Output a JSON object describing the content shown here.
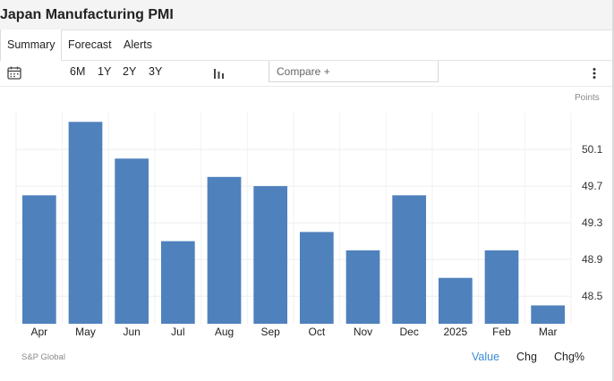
{
  "header": {
    "title": "Japan Manufacturing PMI"
  },
  "tabs": [
    {
      "label": "Summary",
      "active": true
    },
    {
      "label": "Forecast",
      "active": false
    },
    {
      "label": "Alerts",
      "active": false
    }
  ],
  "toolbar": {
    "calendar_icon": "calendar-icon",
    "ranges": [
      "6M",
      "1Y",
      "2Y",
      "3Y"
    ],
    "chart_type_icon": "bar-chart-icon",
    "compare_placeholder": "Compare +",
    "more_icon": "more-vertical-icon"
  },
  "footer": {
    "source": "S&P Global",
    "views": [
      "Value",
      "Chg",
      "Chg%"
    ],
    "active_view": "Value"
  },
  "colors": {
    "bar": "#4f81bd",
    "accent": "#3a8dd6",
    "grid": "#eeeeee"
  },
  "chart_data": {
    "type": "bar",
    "categories": [
      "Apr",
      "May",
      "Jun",
      "Jul",
      "Aug",
      "Sep",
      "Oct",
      "Nov",
      "Dec",
      "2025",
      "Feb",
      "Mar"
    ],
    "values": [
      49.6,
      50.4,
      50.0,
      49.1,
      49.8,
      49.7,
      49.2,
      49.0,
      49.6,
      48.7,
      49.0,
      48.4
    ],
    "ylabel": "Points",
    "ylim": [
      48.2,
      50.5
    ],
    "yticks": [
      48.5,
      48.9,
      49.3,
      49.7,
      50.1
    ],
    "ytick_labels": [
      "48.5",
      "48.9",
      "49.3",
      "49.7",
      "50.1"
    ],
    "grid": true,
    "y_axis_position": "right"
  }
}
